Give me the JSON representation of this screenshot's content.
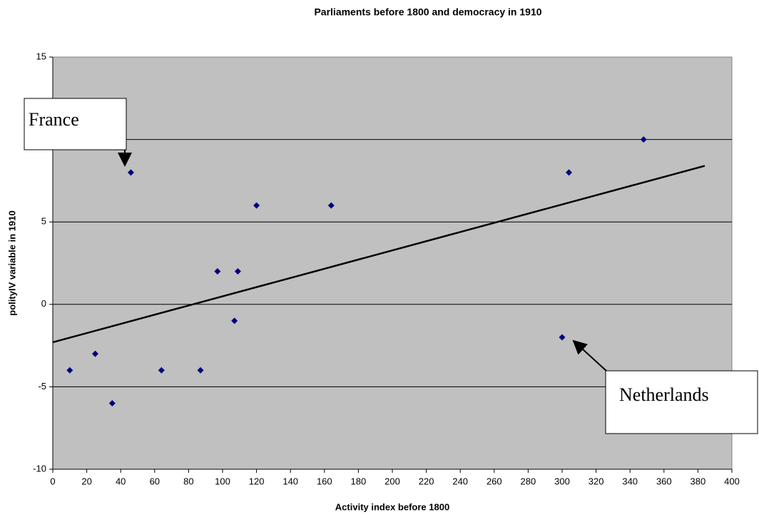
{
  "chart_data": {
    "type": "scatter",
    "title": "Parliaments before 1800 and democracy in 1910",
    "xlabel": "Activity index before 1800",
    "ylabel": "polityIV variable in 1910",
    "x": [
      10,
      25,
      35,
      46,
      64,
      87,
      97,
      107,
      109,
      120,
      164,
      300,
      304,
      348
    ],
    "y": [
      -4,
      -3,
      -6,
      8,
      -4,
      -4,
      2,
      -1,
      2,
      6,
      6,
      -2,
      8,
      10
    ],
    "color": "#000080",
    "trendline": {
      "x": [
        0,
        384
      ],
      "y": [
        -2.3,
        8.4
      ],
      "color": "#000000"
    },
    "xlim": [
      0,
      400
    ],
    "xticks": [
      0,
      20,
      40,
      60,
      80,
      100,
      120,
      140,
      160,
      180,
      200,
      220,
      240,
      260,
      280,
      300,
      320,
      340,
      360,
      380,
      400
    ],
    "ylim": [
      -10,
      15
    ],
    "yticks": [
      -10,
      -5,
      0,
      5,
      10,
      15
    ],
    "grid": true,
    "annotations": [
      "France",
      "Netherlands"
    ]
  }
}
